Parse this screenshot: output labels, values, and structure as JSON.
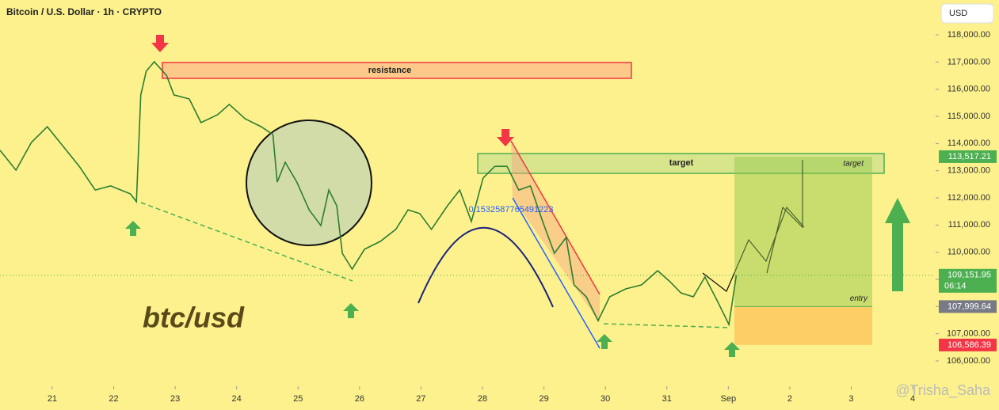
{
  "chart_data": {
    "type": "line",
    "title": "Bitcoin / U.S. Dollar · 1h · CRYPTO",
    "currency": "USD",
    "color": "#2e7d32",
    "x": [
      -0.85,
      -0.59,
      -0.34,
      -0.08,
      0.18,
      0.44,
      0.7,
      0.95,
      1.27,
      1.37,
      1.44,
      1.53,
      1.66,
      1.86,
      1.98,
      2.23,
      2.42,
      2.69,
      2.88,
      3.14,
      3.4,
      3.59,
      3.66,
      3.79,
      3.98,
      4.18,
      4.37,
      4.5,
      4.63,
      4.72,
      4.88,
      5.08,
      5.34,
      5.59,
      5.79,
      5.98,
      6.17,
      6.43,
      6.63,
      6.82,
      7.01,
      7.2,
      7.4,
      7.59,
      7.78,
      7.98,
      8.17,
      8.36,
      8.49,
      8.69,
      8.88,
      9.07,
      9.33,
      9.59,
      9.85,
      10.04,
      10.23,
      10.43,
      10.62,
      10.82,
      11.01,
      11.13
    ],
    "values": [
      113750,
      113020,
      114040,
      114620,
      113890,
      113160,
      112290,
      112440,
      112150,
      111860,
      115790,
      116660,
      117010,
      116510,
      115790,
      115640,
      114770,
      115060,
      115440,
      114910,
      114620,
      114330,
      112580,
      113310,
      112580,
      111560,
      110980,
      112290,
      111710,
      109960,
      109380,
      110110,
      110400,
      110840,
      111560,
      111420,
      110840,
      111710,
      112290,
      111130,
      112730,
      113160,
      113160,
      112290,
      112440,
      111130,
      109960,
      110540,
      108800,
      108360,
      107480,
      108360,
      108650,
      108800,
      109320,
      108940,
      108500,
      108360,
      109090,
      108210,
      107340,
      109151.95
    ],
    "xlim": [
      -0.85,
      14.36
    ],
    "ylim": [
      105068,
      119282
    ],
    "xticks": [
      {
        "value": 0,
        "label": "21"
      },
      {
        "value": 1,
        "label": "22"
      },
      {
        "value": 2,
        "label": "23"
      },
      {
        "value": 3,
        "label": "24"
      },
      {
        "value": 4,
        "label": "25"
      },
      {
        "value": 5,
        "label": "26"
      },
      {
        "value": 6,
        "label": "27"
      },
      {
        "value": 7,
        "label": "28"
      },
      {
        "value": 8,
        "label": "29"
      },
      {
        "value": 9,
        "label": "30"
      },
      {
        "value": 10,
        "label": "31"
      },
      {
        "value": 11,
        "label": "Sep"
      },
      {
        "value": 12,
        "label": "2"
      },
      {
        "value": 13,
        "label": "3"
      },
      {
        "value": 14,
        "label": "4"
      }
    ],
    "yticks": [
      {
        "value": 106000,
        "label": "106,000.00"
      },
      {
        "value": 107000,
        "label": "107,000.00"
      },
      {
        "value": 108000,
        "label": "108,000.00"
      },
      {
        "value": 109000,
        "label": "109,000.00"
      },
      {
        "value": 110000,
        "label": "110,000.00"
      },
      {
        "value": 111000,
        "label": "111,000.00"
      },
      {
        "value": 112000,
        "label": "112,000.00"
      },
      {
        "value": 113000,
        "label": "113,000.00"
      },
      {
        "value": 114000,
        "label": "114,000.00"
      },
      {
        "value": 115000,
        "label": "115,000.00"
      },
      {
        "value": 116000,
        "label": "116,000.00"
      },
      {
        "value": 117000,
        "label": "117,000.00"
      },
      {
        "value": 118000,
        "label": "118,000.00"
      }
    ],
    "markers": [
      {
        "value": 113517.21,
        "label": "113,517.21",
        "color": "#4caf50"
      },
      {
        "value": 109151.95,
        "label": "109,151.95",
        "color": "#4caf50"
      },
      {
        "value": 107999.64,
        "label": "107,999.64",
        "color": "#787b86"
      },
      {
        "value": 106586.39,
        "label": "106,586.39",
        "color": "#f23645"
      }
    ],
    "countdown": "06:14",
    "annotations": {
      "resistance": "resistance",
      "target": "target",
      "target_tag": "target",
      "entry_tag": "entry",
      "symbol": "btc/usd",
      "fib": "0.1532587765491223"
    },
    "watermark": "@Trisha_Saha"
  }
}
